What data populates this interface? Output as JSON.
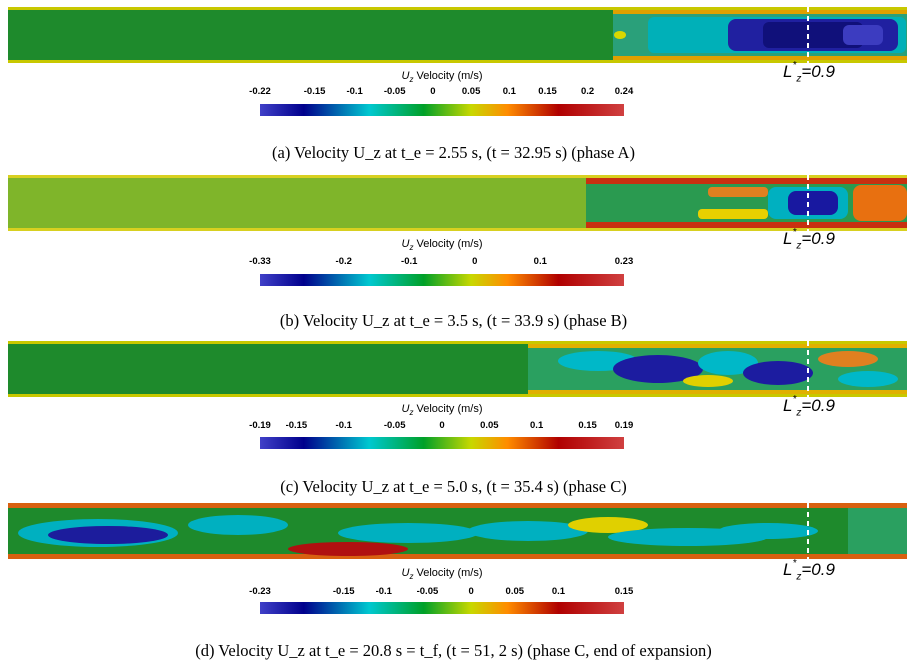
{
  "colorbar_title": "Velocity (m/s)",
  "colorbar_symbol": "U",
  "colorbar_sub": "z",
  "marker": {
    "base": "L",
    "sup": "*",
    "sub": "z",
    "value": "=0.9"
  },
  "panels": [
    {
      "ticks": [
        "-0.22",
        "-0.15",
        "-0.1",
        "-0.05",
        "0",
        "0.05",
        "0.1",
        "0.15",
        "0.2",
        "0.24"
      ],
      "caption": "(a) Velocity U_z at t_e = 2.55 s, (t = 32.95 s) (phase A)",
      "base_color": "#1e8a2c"
    },
    {
      "ticks": [
        "-0.33",
        "-0.2",
        "-0.1",
        "0",
        "0.1",
        "0.23"
      ],
      "caption": "(b) Velocity U_z at t_e = 3.5 s, (t = 33.9 s) (phase B)",
      "base_color": "#7fb52a"
    },
    {
      "ticks": [
        "-0.19",
        "-0.15",
        "-0.1",
        "-0.05",
        "0",
        "0.05",
        "0.1",
        "0.15",
        "0.19"
      ],
      "caption": "(c) Velocity U_z at t_e = 5.0 s, (t = 35.4 s) (phase C)",
      "base_color": "#1e8a2c"
    },
    {
      "ticks": [
        "-0.23",
        "-0.15",
        "-0.1",
        "-0.05",
        "0",
        "0.05",
        "0.1",
        "0.15"
      ],
      "caption": "(d) Velocity U_z at t_e = 20.8 s = t_f, (t = 51, 2 s) (phase C, end of expansion)",
      "base_color": "#1e8a2c"
    }
  ]
}
